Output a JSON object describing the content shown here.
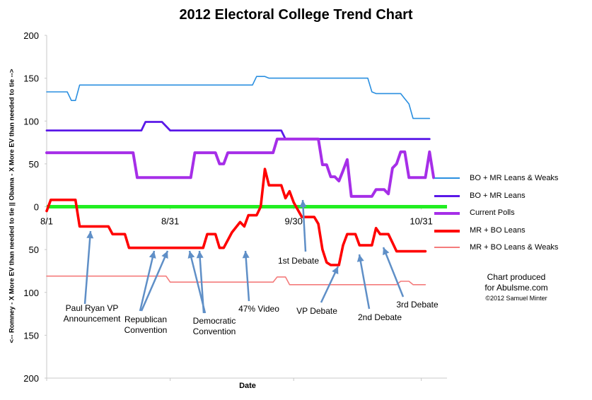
{
  "chart_data": {
    "type": "line",
    "title": "2012 Electoral College Trend Chart",
    "xlabel": "Date",
    "ylabel": "<-- Romney - X More EV than needed to tie ||  Obama - X More EV than needed to tie -->",
    "x_ticks": [
      "8/1",
      "8/31",
      "9/30",
      "10/31"
    ],
    "y_ticks": [
      "200",
      "150",
      "100",
      "50",
      "0",
      "50",
      "100",
      "150",
      "200"
    ],
    "ylim": [
      -200,
      200
    ],
    "grid": false,
    "legend_position": "right",
    "series": [
      {
        "name": "BO + MR Leans & Weaks",
        "color": "#2a8fe0",
        "points": [
          [
            "8/1",
            134
          ],
          [
            "8/6",
            134
          ],
          [
            "8/7",
            124
          ],
          [
            "8/8",
            124
          ],
          [
            "8/9",
            142
          ],
          [
            "9/1",
            142
          ],
          [
            "9/20",
            142
          ],
          [
            "9/21",
            152
          ],
          [
            "9/22",
            152
          ],
          [
            "9/23",
            152
          ],
          [
            "9/24",
            150
          ],
          [
            "10/18",
            150
          ],
          [
            "10/19",
            134
          ],
          [
            "10/20",
            132
          ],
          [
            "10/26",
            132
          ],
          [
            "10/27",
            126
          ],
          [
            "10/28",
            120
          ],
          [
            "10/29",
            103
          ],
          [
            "11/2",
            103
          ]
        ]
      },
      {
        "name": "BO + MR Leans",
        "color": "#5a18e8",
        "points": [
          [
            "8/1",
            89
          ],
          [
            "8/24",
            89
          ],
          [
            "8/25",
            99
          ],
          [
            "8/29",
            99
          ],
          [
            "8/31",
            89
          ],
          [
            "9/27",
            89
          ],
          [
            "9/28",
            79
          ],
          [
            "10/29",
            79
          ],
          [
            "11/2",
            79
          ]
        ]
      },
      {
        "name": "Current Polls",
        "color": "#a62ee8",
        "points": [
          [
            "8/1",
            63
          ],
          [
            "8/22",
            63
          ],
          [
            "8/23",
            34
          ],
          [
            "9/5",
            34
          ],
          [
            "9/6",
            63
          ],
          [
            "9/11",
            63
          ],
          [
            "9/12",
            50
          ],
          [
            "9/13",
            50
          ],
          [
            "9/14",
            63
          ],
          [
            "9/25",
            63
          ],
          [
            "9/26",
            79
          ],
          [
            "10/6",
            79
          ],
          [
            "10/7",
            49
          ],
          [
            "10/8",
            49
          ],
          [
            "10/9",
            35
          ],
          [
            "10/10",
            35
          ],
          [
            "10/11",
            30
          ],
          [
            "10/12",
            42
          ],
          [
            "10/13",
            55
          ],
          [
            "10/14",
            12
          ],
          [
            "10/19",
            12
          ],
          [
            "10/20",
            20
          ],
          [
            "10/22",
            20
          ],
          [
            "10/23",
            15
          ],
          [
            "10/24",
            45
          ],
          [
            "10/25",
            50
          ],
          [
            "10/26",
            64
          ],
          [
            "10/27",
            64
          ],
          [
            "10/28",
            34
          ],
          [
            "11/1",
            34
          ],
          [
            "11/2",
            64
          ],
          [
            "11/3",
            34
          ]
        ]
      },
      {
        "name": "MR + BO Leans",
        "color": "#ff0000",
        "points": [
          [
            "8/1",
            -5
          ],
          [
            "8/2",
            8
          ],
          [
            "8/8",
            8
          ],
          [
            "8/9",
            -23
          ],
          [
            "8/16",
            -23
          ],
          [
            "8/17",
            -32
          ],
          [
            "8/20",
            -32
          ],
          [
            "8/21",
            -48
          ],
          [
            "9/8",
            -48
          ],
          [
            "9/9",
            -32
          ],
          [
            "9/11",
            -32
          ],
          [
            "9/12",
            -48
          ],
          [
            "9/13",
            -48
          ],
          [
            "9/15",
            -30
          ],
          [
            "9/17",
            -18
          ],
          [
            "9/18",
            -23
          ],
          [
            "9/19",
            -10
          ],
          [
            "9/21",
            -10
          ],
          [
            "9/22",
            0
          ],
          [
            "9/23",
            44
          ],
          [
            "9/24",
            25
          ],
          [
            "9/27",
            25
          ],
          [
            "9/28",
            10
          ],
          [
            "9/29",
            18
          ],
          [
            "9/30",
            5
          ],
          [
            "10/2",
            -12
          ],
          [
            "10/5",
            -12
          ],
          [
            "10/6",
            -20
          ],
          [
            "10/7",
            -50
          ],
          [
            "10/8",
            -65
          ],
          [
            "10/9",
            -68
          ],
          [
            "10/11",
            -68
          ],
          [
            "10/12",
            -45
          ],
          [
            "10/13",
            -32
          ],
          [
            "10/15",
            -32
          ],
          [
            "10/16",
            -45
          ],
          [
            "10/19",
            -45
          ],
          [
            "10/20",
            -25
          ],
          [
            "10/21",
            -32
          ],
          [
            "10/23",
            -32
          ],
          [
            "10/24",
            -42
          ],
          [
            "10/25",
            -52
          ],
          [
            "11/1",
            -52
          ]
        ]
      },
      {
        "name": "MR + BO Leans & Weaks",
        "color": "#f47c7c",
        "points": [
          [
            "8/1",
            -81
          ],
          [
            "8/30",
            -81
          ],
          [
            "8/31",
            -88
          ],
          [
            "9/25",
            -88
          ],
          [
            "9/26",
            -82
          ],
          [
            "9/28",
            -82
          ],
          [
            "9/29",
            -91
          ],
          [
            "10/25",
            -91
          ],
          [
            "10/26",
            -87
          ],
          [
            "10/28",
            -87
          ],
          [
            "10/29",
            -91
          ],
          [
            "11/1",
            -91
          ]
        ]
      }
    ],
    "zero_line_color": "#22ee22",
    "annotations": [
      {
        "text": "Paul Ryan VP Announcement",
        "lines": [
          "Paul Ryan VP",
          "Announcement"
        ]
      },
      {
        "text": "Republican Convention",
        "lines": [
          "Republican",
          "Convention"
        ]
      },
      {
        "text": "Democratic Convention",
        "lines": [
          "Democratic",
          "Convention"
        ]
      },
      {
        "text": "47% Video",
        "lines": [
          "47% Video"
        ]
      },
      {
        "text": "1st Debate",
        "lines": [
          "1st Debate"
        ]
      },
      {
        "text": "VP Debate",
        "lines": [
          "VP Debate"
        ]
      },
      {
        "text": "2nd Debate",
        "lines": [
          "2nd Debate"
        ]
      },
      {
        "text": "3rd Debate",
        "lines": [
          "3rd Debate"
        ]
      }
    ]
  },
  "credit": {
    "line1": "Chart produced",
    "line2": "for Abulsme.com",
    "line3": "©2012 Samuel Minter"
  }
}
